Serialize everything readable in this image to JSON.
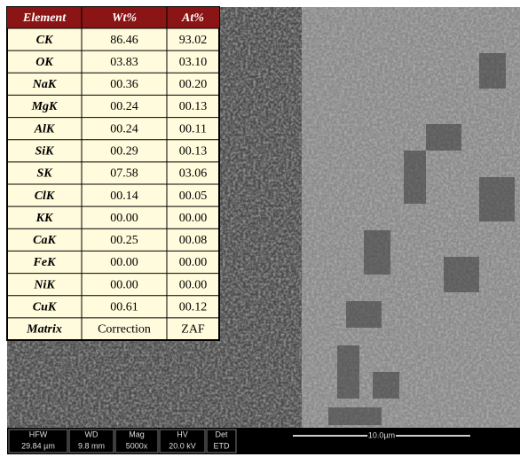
{
  "table": {
    "headers": [
      "Element",
      "Wt%",
      "At%"
    ],
    "rows": [
      [
        "CK",
        "86.46",
        "93.02"
      ],
      [
        "OK",
        "03.83",
        "03.10"
      ],
      [
        "NaK",
        "00.36",
        "00.20"
      ],
      [
        "MgK",
        "00.24",
        "00.13"
      ],
      [
        "AlK",
        "00.24",
        "00.11"
      ],
      [
        "SiK",
        "00.29",
        "00.13"
      ],
      [
        "SK",
        "07.58",
        "03.06"
      ],
      [
        "ClK",
        "00.14",
        "00.05"
      ],
      [
        "KK",
        "00.00",
        "00.00"
      ],
      [
        "CaK",
        "00.25",
        "00.08"
      ],
      [
        "FeK",
        "00.00",
        "00.00"
      ],
      [
        "NiK",
        "00.00",
        "00.00"
      ],
      [
        "CuK",
        "00.61",
        "00.12"
      ],
      [
        "Matrix",
        "Correction",
        "ZAF"
      ]
    ]
  },
  "info_bar": {
    "items": [
      {
        "label": "HFW",
        "value": "29.84 µm"
      },
      {
        "label": "WD",
        "value": "9.8 mm"
      },
      {
        "label": "Mag",
        "value": "5000x"
      },
      {
        "label": "HV",
        "value": "20.0 kV"
      },
      {
        "label": "Det",
        "value": "ETD"
      }
    ]
  },
  "scale_bar": {
    "label": "10.0µm"
  }
}
